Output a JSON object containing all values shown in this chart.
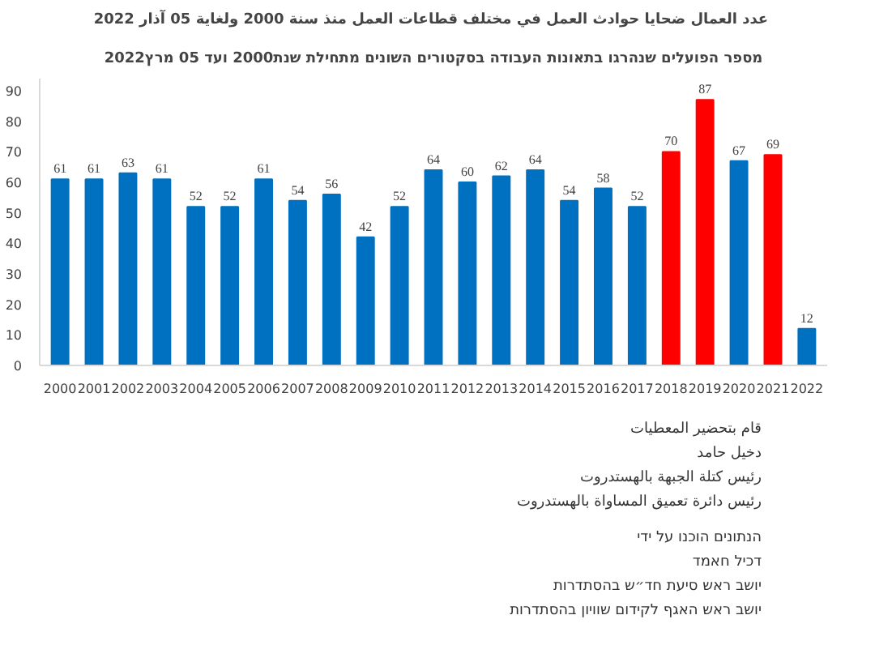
{
  "chart_data": {
    "type": "bar",
    "title": "عدد العمال ضحايا حوادث العمل في مختلف قطاعات العمل منذ سنة 2000  ولغاية 05 آذار 2022",
    "subtitle": "מספר הפועלים שנהרגו בתאונות העבודה בסקטורים השונים מתחילת שנת2000 ועד 05 מרץ2022",
    "categories": [
      "2000",
      "2001",
      "2002",
      "2003",
      "2004",
      "2005",
      "2006",
      "2007",
      "2008",
      "2009",
      "2010",
      "2011",
      "2012",
      "2013",
      "2014",
      "2015",
      "2016",
      "2017",
      "2018",
      "2019",
      "2020",
      "2021",
      "2022"
    ],
    "values": [
      61,
      61,
      63,
      61,
      52,
      52,
      61,
      54,
      56,
      42,
      52,
      64,
      60,
      62,
      64,
      54,
      58,
      52,
      70,
      87,
      67,
      69,
      12
    ],
    "colors": [
      "#0070c0",
      "#0070c0",
      "#0070c0",
      "#0070c0",
      "#0070c0",
      "#0070c0",
      "#0070c0",
      "#0070c0",
      "#0070c0",
      "#0070c0",
      "#0070c0",
      "#0070c0",
      "#0070c0",
      "#0070c0",
      "#0070c0",
      "#0070c0",
      "#0070c0",
      "#0070c0",
      "#ff0000",
      "#ff0000",
      "#0070c0",
      "#ff0000",
      "#0070c0"
    ],
    "ylim": [
      0,
      94
    ],
    "yticks": [
      0,
      10,
      20,
      30,
      40,
      50,
      60,
      70,
      80,
      90
    ],
    "data_labels": true,
    "grid": false,
    "annotations": [
      "قام بتحضير المعطيات",
      "دخيل حامد",
      "رئيس كتلة الجبهة بالهستدروت",
      "رئيس دائرة تعميق المساواة بالهستدروت",
      "הנתונים הוכנו על ידי",
      "דכיל חאמד",
      "יושב ראש סיעת חד״ש בהסתדרות",
      "יושב ראש האגף לקידום שוויון בהסתדרות"
    ]
  }
}
